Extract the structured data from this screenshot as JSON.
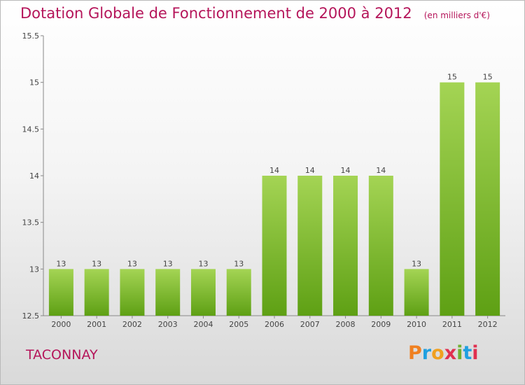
{
  "title": "Dotation Globale de Fonctionnement de 2000 à 2012",
  "subtitle": "(en milliers d'€)",
  "commune": "TACONNAY",
  "logo": {
    "text": "Proxiti",
    "letter_colors": [
      "#f08020",
      "#20a0e0",
      "#f0a020",
      "#e03050",
      "#70b030",
      "#20a0e0",
      "#e03050"
    ]
  },
  "colors": {
    "title": "#b5155a",
    "bar_top": "#a4d454",
    "bar_bottom": "#5ea014"
  },
  "chart_data": {
    "type": "bar",
    "title": "Dotation Globale de Fonctionnement de 2000 à 2012",
    "categories": [
      "2000",
      "2001",
      "2002",
      "2003",
      "2004",
      "2005",
      "2006",
      "2007",
      "2008",
      "2009",
      "2010",
      "2011",
      "2012"
    ],
    "values": [
      13,
      13,
      13,
      13,
      13,
      13,
      14,
      14,
      14,
      14,
      13,
      15,
      15
    ],
    "ylim": [
      12.5,
      15.5
    ],
    "yticks": [
      "12.5",
      "13",
      "13.5",
      "14",
      "14.5",
      "15",
      "15.5"
    ],
    "grid": false,
    "legend": "none"
  }
}
